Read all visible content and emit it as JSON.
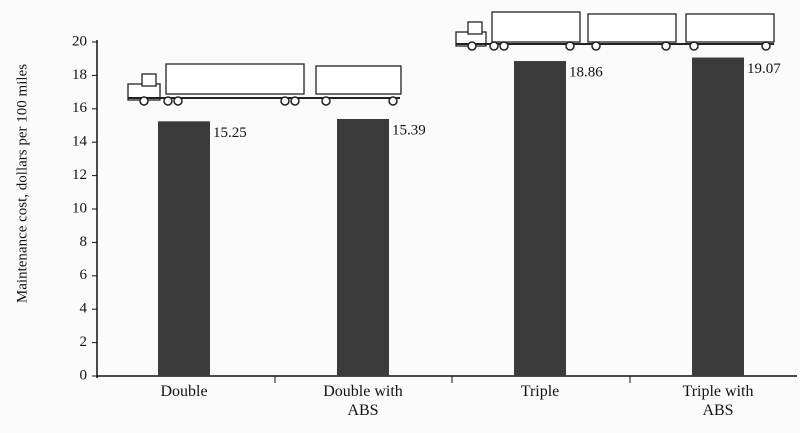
{
  "chart_data": {
    "type": "bar",
    "y_label": "Maintenance cost, dollars per 100 miles",
    "categories": [
      "Double",
      "Double with ABS",
      "Triple",
      "Triple with ABS"
    ],
    "values": [
      15.25,
      15.39,
      18.86,
      19.07
    ],
    "color": "#3b3b3b",
    "ylim": [
      0,
      20
    ],
    "yticks": [
      0,
      2,
      4,
      6,
      8,
      10,
      12,
      14,
      16,
      18,
      20
    ],
    "grid": false
  }
}
